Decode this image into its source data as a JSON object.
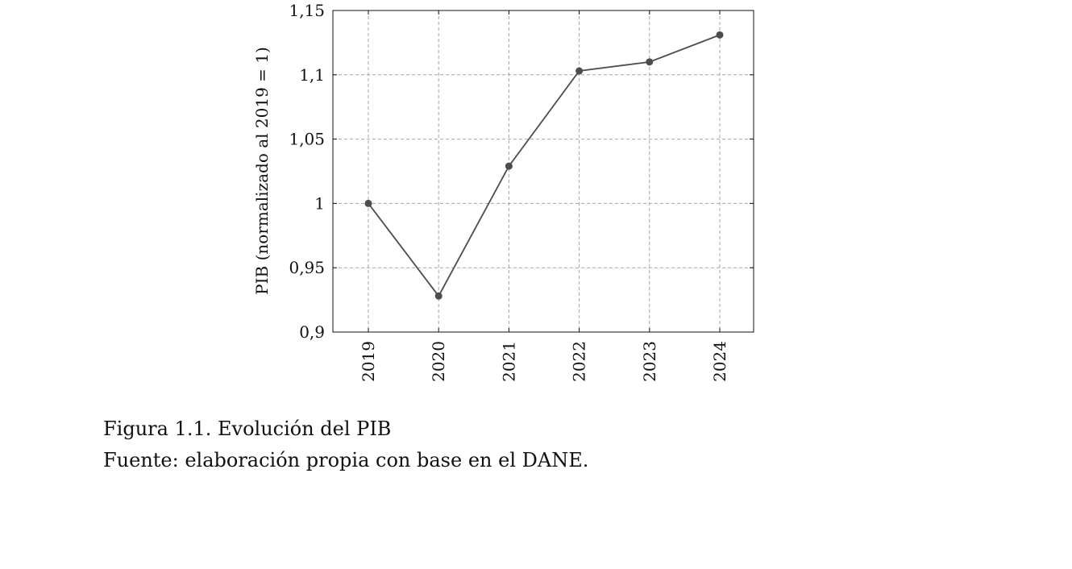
{
  "caption": {
    "title": "Figura 1.1. Evolución del PIB",
    "source": "Fuente: elaboración propia con base en el DANE."
  },
  "colors": {
    "series": "#4d4d4d",
    "grid": "#a6a6a6",
    "axis": "#111111"
  },
  "chart_data": {
    "type": "line",
    "title": "",
    "xlabel": "",
    "ylabel": "PIB (normalizado al 2019 = 1)",
    "categories": [
      "2019",
      "2020",
      "2021",
      "2022",
      "2023",
      "2024"
    ],
    "series": [
      {
        "values": [
          1.0,
          0.928,
          1.029,
          1.103,
          1.11,
          1.131
        ],
        "marker": "circle"
      }
    ],
    "ylim": [
      0.9,
      1.15
    ],
    "yticks": [
      0.9,
      0.95,
      1.0,
      1.05,
      1.1,
      1.15
    ],
    "ytick_labels": [
      "0,9",
      "0,95",
      "1",
      "1,05",
      "1,1",
      "1,15"
    ],
    "xtick_rotation": "vertical",
    "grid": true,
    "grid_style": "dashed",
    "legend": "none"
  }
}
